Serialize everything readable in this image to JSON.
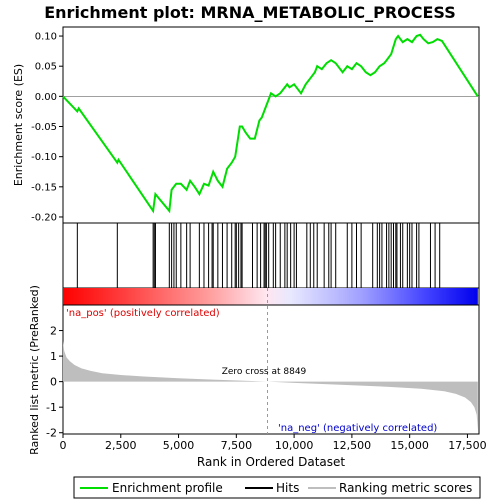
{
  "title": "Enrichment plot: MRNA_METABOLIC_PROCESS",
  "colors": {
    "es_line": "#00dd00",
    "hits": "#000000",
    "metric_fill": "#bebebe",
    "pos_label": "#dd0000",
    "neg_label": "#0000cc",
    "heat_pos": "#ff0000",
    "heat_neg": "#0000ff"
  },
  "chart_data": [
    {
      "type": "line",
      "panel": "enrichment",
      "ylabel": "Enrichment score (ES)",
      "xlim": [
        0,
        18000
      ],
      "ylim": [
        -0.21,
        0.115
      ],
      "yticks": [
        -0.2,
        -0.15,
        -0.1,
        -0.05,
        0.0,
        0.05,
        0.1
      ],
      "ytick_labels": [
        "-0.20",
        "-0.15",
        "-0.10",
        "-0.05",
        "0.00",
        "0.05",
        "0.10"
      ],
      "x": [
        0,
        620,
        680,
        2350,
        2400,
        3900,
        3950,
        4000,
        4600,
        4700,
        4900,
        5100,
        5350,
        5500,
        5700,
        5900,
        6100,
        6300,
        6500,
        6700,
        6900,
        7100,
        7300,
        7450,
        7550,
        7650,
        7750,
        7900,
        8100,
        8300,
        8400,
        8500,
        8600,
        8700,
        8800,
        8900,
        9000,
        9200,
        9400,
        9600,
        9700,
        9800,
        10000,
        10100,
        10300,
        10500,
        10700,
        10900,
        11000,
        11200,
        11400,
        11600,
        11800,
        12100,
        12300,
        12500,
        12700,
        12900,
        13100,
        13300,
        13500,
        13700,
        13900,
        14000,
        14200,
        14400,
        14500,
        14700,
        14900,
        15100,
        15300,
        15450,
        15600,
        15800,
        16000,
        16200,
        16400,
        17950
      ],
      "values": [
        0.0,
        -0.025,
        -0.02,
        -0.11,
        -0.105,
        -0.19,
        -0.175,
        -0.162,
        -0.19,
        -0.155,
        -0.145,
        -0.145,
        -0.155,
        -0.14,
        -0.15,
        -0.162,
        -0.145,
        -0.148,
        -0.125,
        -0.14,
        -0.15,
        -0.12,
        -0.11,
        -0.1,
        -0.075,
        -0.05,
        -0.05,
        -0.06,
        -0.07,
        -0.07,
        -0.055,
        -0.04,
        -0.035,
        -0.025,
        -0.015,
        -0.005,
        0.005,
        0.0,
        0.005,
        0.015,
        0.02,
        0.015,
        0.02,
        0.015,
        0.005,
        0.02,
        0.03,
        0.04,
        0.05,
        0.045,
        0.055,
        0.06,
        0.055,
        0.04,
        0.05,
        0.045,
        0.055,
        0.05,
        0.04,
        0.035,
        0.04,
        0.05,
        0.055,
        0.06,
        0.07,
        0.095,
        0.1,
        0.09,
        0.095,
        0.09,
        0.1,
        0.102,
        0.095,
        0.088,
        0.09,
        0.095,
        0.092,
        0.0
      ]
    },
    {
      "type": "scatter",
      "panel": "hits",
      "positions": [
        620,
        2350,
        3900,
        3950,
        4000,
        4600,
        4700,
        4800,
        4900,
        5100,
        5350,
        5500,
        5900,
        6100,
        6300,
        6450,
        6500,
        6700,
        6900,
        7100,
        7300,
        7450,
        7500,
        7600,
        7700,
        7750,
        8200,
        8400,
        8550,
        8700,
        8750,
        8800,
        8900,
        9100,
        9200,
        9400,
        9600,
        9700,
        9850,
        10000,
        10100,
        10550,
        10700,
        10850,
        11000,
        11300,
        11500,
        11600,
        11800,
        12300,
        12500,
        12700,
        12900,
        13400,
        13600,
        13700,
        13800,
        14000,
        14100,
        14200,
        14300,
        14400,
        14450,
        14600,
        14700,
        14900,
        15000,
        15100,
        15300,
        15400,
        15900,
        16100,
        16300
      ]
    },
    {
      "type": "area",
      "panel": "ranked_metric",
      "ylabel": "Ranked list metric (PreRanked)",
      "xlabel": "Rank in Ordered Dataset",
      "xlim": [
        0,
        18000
      ],
      "ylim": [
        -2.05,
        3.0
      ],
      "yticks": [
        -2,
        -1,
        0,
        1,
        2
      ],
      "ytick_labels": [
        "-2",
        "-1",
        "0",
        "1",
        "2"
      ],
      "xticks": [
        0,
        2500,
        5000,
        7500,
        10000,
        12500,
        15000,
        17500
      ],
      "xtick_labels": [
        "0",
        "2,500",
        "5,000",
        "7,500",
        "10,000",
        "12,500",
        "15,000",
        "17,500"
      ],
      "x": [
        0,
        50,
        150,
        300,
        500,
        800,
        1200,
        1700,
        2500,
        3500,
        5000,
        6500,
        8000,
        8849,
        10000,
        12000,
        14000,
        15500,
        16500,
        17000,
        17400,
        17650,
        17800,
        17900,
        17950
      ],
      "values": [
        1.6,
        1.2,
        0.95,
        0.8,
        0.65,
        0.52,
        0.42,
        0.33,
        0.26,
        0.2,
        0.13,
        0.08,
        0.03,
        0.0,
        -0.05,
        -0.12,
        -0.2,
        -0.28,
        -0.38,
        -0.48,
        -0.62,
        -0.8,
        -1.0,
        -1.3,
        -1.9
      ],
      "zero_cross_label": "Zero cross at 8849",
      "zero_cross": 8849,
      "pos_label": "'na_pos' (positively correlated)",
      "neg_label": "'na_neg' (negatively correlated)"
    }
  ],
  "legend": {
    "items": [
      {
        "label": "Enrichment profile",
        "color": "#00dd00"
      },
      {
        "label": "Hits",
        "color": "#000000"
      },
      {
        "label": "Ranking metric scores",
        "color": "#bebebe"
      }
    ]
  }
}
